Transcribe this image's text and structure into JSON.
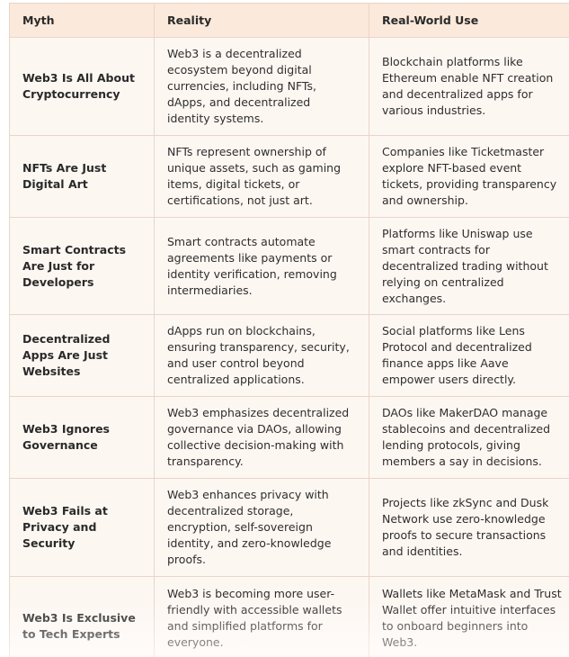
{
  "table": {
    "headers": {
      "myth": "Myth",
      "reality": "Reality",
      "use": "Real-World Use"
    },
    "rows": [
      {
        "myth": "Web3 Is All About Cryptocurrency",
        "reality": "Web3 is a decentralized ecosystem beyond digital currencies, including NFTs, dApps, and decentralized identity systems.",
        "use": "Blockchain platforms like Ethereum enable NFT creation and decentralized apps for various industries."
      },
      {
        "myth": "NFTs Are Just Digital Art",
        "reality": "NFTs represent ownership of unique assets, such as gaming items, digital tickets, or certifications, not just art.",
        "use": "Companies like Ticketmaster explore NFT-based event tickets, providing transparency and ownership."
      },
      {
        "myth": "Smart Contracts Are Just for Developers",
        "reality": "Smart contracts automate agreements like payments or identity verification, removing intermediaries.",
        "use": "Platforms like Uniswap use smart contracts for decentralized trading without relying on centralized exchanges."
      },
      {
        "myth": "Decentralized Apps Are Just Websites",
        "reality": "dApps run on blockchains, ensuring transparency, security, and user control beyond centralized applications.",
        "use": "Social platforms like Lens Protocol and decentralized finance apps like Aave empower users directly."
      },
      {
        "myth": "Web3 Ignores Governance",
        "reality": "Web3 emphasizes decentralized governance via DAOs, allowing collective decision-making with transparency.",
        "use": "DAOs like MakerDAO manage stablecoins and decentralized lending protocols, giving members a say in decisions."
      },
      {
        "myth": "Web3 Fails at Privacy and Security",
        "reality": "Web3 enhances privacy with decentralized storage, encryption, self-sovereign identity, and zero-knowledge proofs.",
        "use": "Projects like zkSync and Dusk Network use zero-knowledge proofs to secure transactions and identities."
      },
      {
        "myth": "Web3 Is Exclusive to Tech Experts",
        "reality": "Web3 is becoming more user-friendly with accessible wallets and simplified platforms for everyone.",
        "use": "Wallets like MetaMask and Trust Wallet offer intuitive interfaces to onboard beginners into Web3."
      }
    ]
  },
  "colors": {
    "header_bg": "#fbe9db",
    "cell_bg": "#fdf7f2",
    "border": "#ead5c6",
    "text": "#2e2e2e"
  }
}
